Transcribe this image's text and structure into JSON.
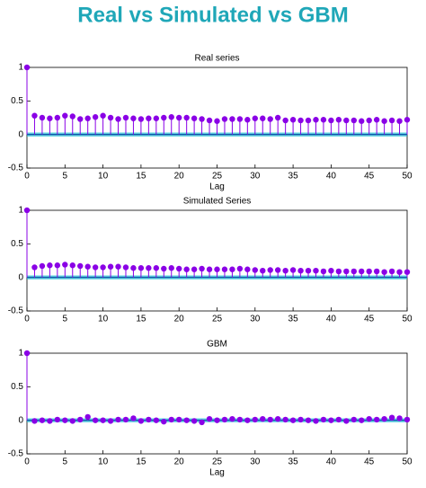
{
  "title": "Real vs Simulated vs GBM",
  "chart_data": [
    {
      "type": "stem",
      "title": "Real series",
      "xlabel": "Lag",
      "color": "#8a00e6",
      "bound_color": "#22c4d8",
      "x": [
        0,
        1,
        2,
        3,
        4,
        5,
        6,
        7,
        8,
        9,
        10,
        11,
        12,
        13,
        14,
        15,
        16,
        17,
        18,
        19,
        20,
        21,
        22,
        23,
        24,
        25,
        26,
        27,
        28,
        29,
        30,
        31,
        32,
        33,
        34,
        35,
        36,
        37,
        38,
        39,
        40,
        41,
        42,
        43,
        44,
        45,
        46,
        47,
        48,
        49,
        50
      ],
      "values": [
        1,
        0.28,
        0.25,
        0.24,
        0.25,
        0.28,
        0.27,
        0.23,
        0.24,
        0.26,
        0.28,
        0.25,
        0.23,
        0.25,
        0.24,
        0.23,
        0.24,
        0.24,
        0.25,
        0.26,
        0.25,
        0.25,
        0.24,
        0.23,
        0.21,
        0.2,
        0.23,
        0.23,
        0.23,
        0.22,
        0.24,
        0.24,
        0.23,
        0.25,
        0.21,
        0.22,
        0.21,
        0.21,
        0.22,
        0.22,
        0.21,
        0.22,
        0.21,
        0.21,
        0.2,
        0.21,
        0.22,
        0.2,
        0.21,
        0.2,
        0.22
      ],
      "confidence_bounds": [
        -0.02,
        0.02
      ],
      "xlim": [
        0,
        50
      ],
      "xticks": [
        0,
        5,
        10,
        15,
        20,
        25,
        30,
        35,
        40,
        45,
        50
      ],
      "ylim": [
        -0.5,
        1
      ],
      "yticks": [
        -0.5,
        0,
        0.5,
        1
      ]
    },
    {
      "type": "stem",
      "title": "Simulated Series",
      "color": "#8a00e6",
      "bound_color": "#22c4d8",
      "x": [
        0,
        1,
        2,
        3,
        4,
        5,
        6,
        7,
        8,
        9,
        10,
        11,
        12,
        13,
        14,
        15,
        16,
        17,
        18,
        19,
        20,
        21,
        22,
        23,
        24,
        25,
        26,
        27,
        28,
        29,
        30,
        31,
        32,
        33,
        34,
        35,
        36,
        37,
        38,
        39,
        40,
        41,
        42,
        43,
        44,
        45,
        46,
        47,
        48,
        49,
        50
      ],
      "values": [
        1,
        0.15,
        0.17,
        0.18,
        0.18,
        0.19,
        0.18,
        0.17,
        0.16,
        0.15,
        0.15,
        0.16,
        0.16,
        0.15,
        0.14,
        0.14,
        0.14,
        0.14,
        0.13,
        0.14,
        0.13,
        0.12,
        0.12,
        0.13,
        0.12,
        0.12,
        0.12,
        0.12,
        0.13,
        0.12,
        0.11,
        0.1,
        0.11,
        0.11,
        0.1,
        0.11,
        0.1,
        0.1,
        0.1,
        0.09,
        0.1,
        0.09,
        0.09,
        0.09,
        0.09,
        0.09,
        0.09,
        0.08,
        0.09,
        0.08,
        0.08
      ],
      "confidence_bounds": [
        -0.02,
        0.02
      ],
      "xlim": [
        0,
        50
      ],
      "xticks": [
        0,
        5,
        10,
        15,
        20,
        25,
        30,
        35,
        40,
        45,
        50
      ],
      "ylim": [
        -0.5,
        1
      ],
      "yticks": [
        -0.5,
        0,
        0.5,
        1
      ]
    },
    {
      "type": "stem",
      "title": "GBM",
      "xlabel": "Lag",
      "color": "#8a00e6",
      "bound_color": "#22c4d8",
      "x": [
        0,
        1,
        2,
        3,
        4,
        5,
        6,
        7,
        8,
        9,
        10,
        11,
        12,
        13,
        14,
        15,
        16,
        17,
        18,
        19,
        20,
        21,
        22,
        23,
        24,
        25,
        26,
        27,
        28,
        29,
        30,
        31,
        32,
        33,
        34,
        35,
        36,
        37,
        38,
        39,
        40,
        41,
        42,
        43,
        44,
        45,
        46,
        47,
        48,
        49,
        50
      ],
      "values": [
        1,
        -0.01,
        0,
        -0.01,
        0.01,
        0,
        -0.01,
        0.01,
        0.05,
        0,
        0,
        -0.01,
        0.01,
        0.01,
        0.03,
        -0.01,
        0.01,
        0,
        -0.02,
        0.01,
        0.01,
        0,
        -0.01,
        -0.03,
        0.02,
        0,
        0.01,
        0.02,
        0.01,
        0,
        0.01,
        0.02,
        0.01,
        0.02,
        0.01,
        0,
        0.01,
        0,
        -0.01,
        0.01,
        0,
        0.01,
        -0.01,
        0.01,
        0,
        0.02,
        0.01,
        0.02,
        0.04,
        0.03,
        0.01
      ],
      "confidence_bounds": [
        -0.02,
        0.02
      ],
      "xlim": [
        0,
        50
      ],
      "xticks": [
        0,
        5,
        10,
        15,
        20,
        25,
        30,
        35,
        40,
        45,
        50
      ],
      "ylim": [
        -0.5,
        1
      ],
      "yticks": [
        -0.5,
        0,
        0.5,
        1
      ]
    }
  ]
}
